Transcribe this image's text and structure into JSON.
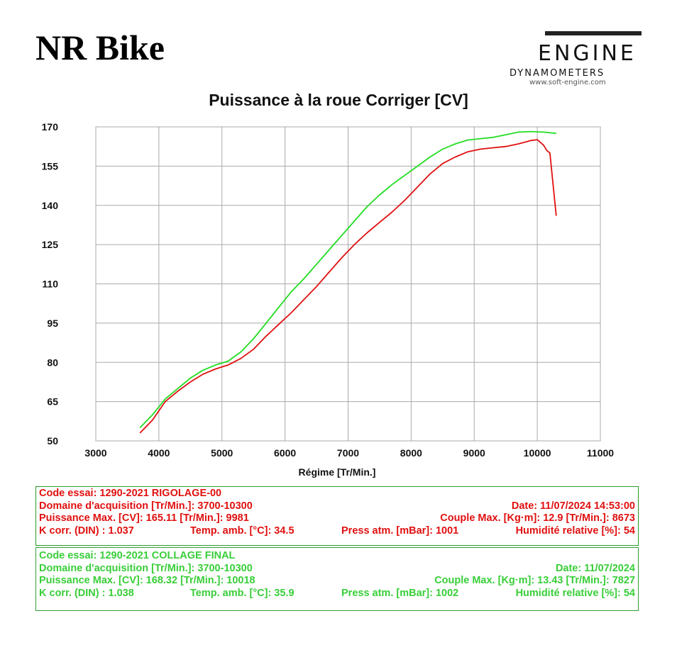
{
  "header": {
    "brand": "NR Bike",
    "logo": {
      "word": "ENGINE",
      "subtitle": "DYNAMOMETERS",
      "url": "www.soft-engine.com"
    }
  },
  "colors": {
    "run_red": "#e01010",
    "run_green": "#22dd22",
    "grid": "#aaaaaa",
    "box_border": "#2a9a2a"
  },
  "chart_data": {
    "type": "line",
    "title": "Puissance à la roue Corriger [CV]",
    "xlabel": "Régime [Tr/Min.]",
    "ylabel": "",
    "xlim": [
      3000,
      11000
    ],
    "ylim": [
      50,
      170
    ],
    "x_ticks": [
      3000,
      4000,
      5000,
      6000,
      7000,
      8000,
      9000,
      10000,
      11000
    ],
    "y_ticks": [
      50,
      65,
      80,
      95,
      110,
      125,
      140,
      155,
      170
    ],
    "grid": true,
    "series": [
      {
        "color": "#22dd22",
        "x": [
          3700,
          3900,
          4100,
          4300,
          4500,
          4700,
          4900,
          5100,
          5300,
          5500,
          5700,
          5900,
          6100,
          6300,
          6500,
          6700,
          6900,
          7100,
          7300,
          7500,
          7700,
          7900,
          8100,
          8300,
          8500,
          8700,
          8900,
          9100,
          9300,
          9500,
          9700,
          9900,
          10100,
          10300
        ],
        "y": [
          55,
          60,
          66,
          70,
          74,
          77,
          79,
          80.5,
          84,
          89,
          95,
          101,
          107,
          112,
          117.5,
          123,
          128.5,
          134,
          139.5,
          144,
          148,
          151.5,
          155,
          158.5,
          161.5,
          163.5,
          165,
          165.5,
          166,
          167,
          168,
          168.2,
          168,
          167.5
        ]
      },
      {
        "color": "#e01010",
        "x": [
          3700,
          3900,
          4100,
          4300,
          4500,
          4700,
          4900,
          5100,
          5300,
          5500,
          5700,
          5900,
          6100,
          6300,
          6500,
          6700,
          6900,
          7100,
          7300,
          7500,
          7700,
          7900,
          8100,
          8300,
          8500,
          8700,
          8900,
          9100,
          9300,
          9500,
          9700,
          9900,
          10000,
          10100,
          10150,
          10200,
          10300
        ],
        "y": [
          53,
          58,
          65,
          69,
          72.5,
          75.5,
          77.5,
          79,
          81.5,
          85,
          90,
          94.5,
          99,
          104,
          109,
          114.5,
          120,
          125,
          129.5,
          133.5,
          137.5,
          142,
          147,
          152,
          156,
          158.5,
          160.5,
          161.5,
          162,
          162.5,
          163.5,
          164.8,
          165.1,
          163,
          161,
          160,
          136
        ]
      }
    ]
  },
  "runs": [
    {
      "code": "Code essai: 1290-2021 RIGOLAGE-00",
      "domain": "Domaine d'acquisition [Tr/Min.]: 3700-10300",
      "date": "Date: 11/07/2024   14:53:00",
      "power_max": "Puissance Max. [CV]: 165.11   [Tr/Min.]: 9981",
      "torque_max": "Couple Max. [Kg·m]: 12.9   [Tr/Min.]: 8673",
      "k_corr": "K corr. (DIN) : 1.037",
      "temp": "Temp. amb. [°C]: 34.5",
      "pressure": "Press atm. [mBar]: 1001",
      "humidity": "Humidité relative [%]: 54"
    },
    {
      "code": "Code essai: 1290-2021 COLLAGE FINAL",
      "domain": "Domaine d'acquisition [Tr/Min.]: 3700-10300",
      "date": "Date: 11/07/2024",
      "power_max": "Puissance Max. [CV]: 168.32   [Tr/Min.]: 10018",
      "torque_max": "Couple Max. [Kg·m]: 13.43   [Tr/Min.]: 7827",
      "k_corr": "K corr. (DIN) : 1.038",
      "temp": "Temp. amb. [°C]: 35.9",
      "pressure": "Press atm. [mBar]: 1002",
      "humidity": "Humidité relative [%]: 54"
    }
  ]
}
